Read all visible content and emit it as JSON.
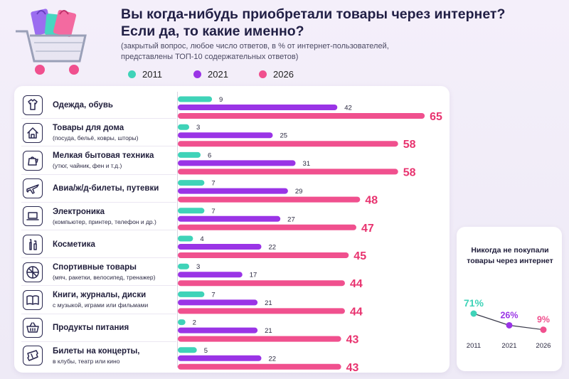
{
  "title_line1": "Вы когда-нибудь приобретали товары через интернет?",
  "title_line2": "Если да, то какие именно?",
  "subtitle_line1": "(закрытый вопрос, любое число ответов, в % от интернет-пользователей,",
  "subtitle_line2": "представлены ТОП-10 содержательных ответов)",
  "colors": {
    "2011": "#3fd3b8",
    "2021": "#9a34e6",
    "2026": "#f0508e",
    "label2026": "#e8336f"
  },
  "chart_data": [
    {
      "type": "bar",
      "orientation": "horizontal",
      "title": "Вы когда-нибудь приобретали товары через интернет? Если да, то какие именно?",
      "categories": [
        "Одежда, обувь",
        "Товары для дома",
        "Мелкая бытовая техника",
        "Авиа/ж/д-билеты, путевки",
        "Электроника",
        "Косметика",
        "Спортивные товары",
        "Книги, журналы, диски",
        "Продукты питания",
        "Билеты на концерты,"
      ],
      "category_notes": [
        "",
        "(посуда, бельё, ковры, шторы)",
        "(утюг, чайник, фен и т.д.)",
        "",
        "(компьютер, принтер, телефон и др.)",
        "",
        "(мяч, ракетки, велосипед, тренажер)",
        "с музыкой, играми или фильмами",
        "",
        "в клубы, театр или кино"
      ],
      "icons": [
        "shirt-icon",
        "house-icon",
        "kettle-icon",
        "airplane-icon",
        "laptop-icon",
        "cosmetics-icon",
        "ball-icon",
        "book-icon",
        "basket-icon",
        "ticket-icon"
      ],
      "series": [
        {
          "name": "2011",
          "values": [
            9,
            3,
            6,
            7,
            7,
            4,
            3,
            7,
            2,
            5
          ]
        },
        {
          "name": "2021",
          "values": [
            42,
            25,
            31,
            29,
            27,
            22,
            17,
            21,
            21,
            22
          ]
        },
        {
          "name": "2026",
          "values": [
            65,
            58,
            58,
            48,
            47,
            45,
            44,
            44,
            43,
            43
          ]
        }
      ],
      "xlim": [
        0,
        65
      ],
      "legend": "top"
    },
    {
      "type": "line",
      "title": "Никогда не покупали товары через интернет",
      "x": [
        "2011",
        "2021",
        "2026"
      ],
      "values": [
        71,
        26,
        9
      ],
      "value_labels": [
        "71%",
        "26%",
        "9%"
      ]
    }
  ]
}
